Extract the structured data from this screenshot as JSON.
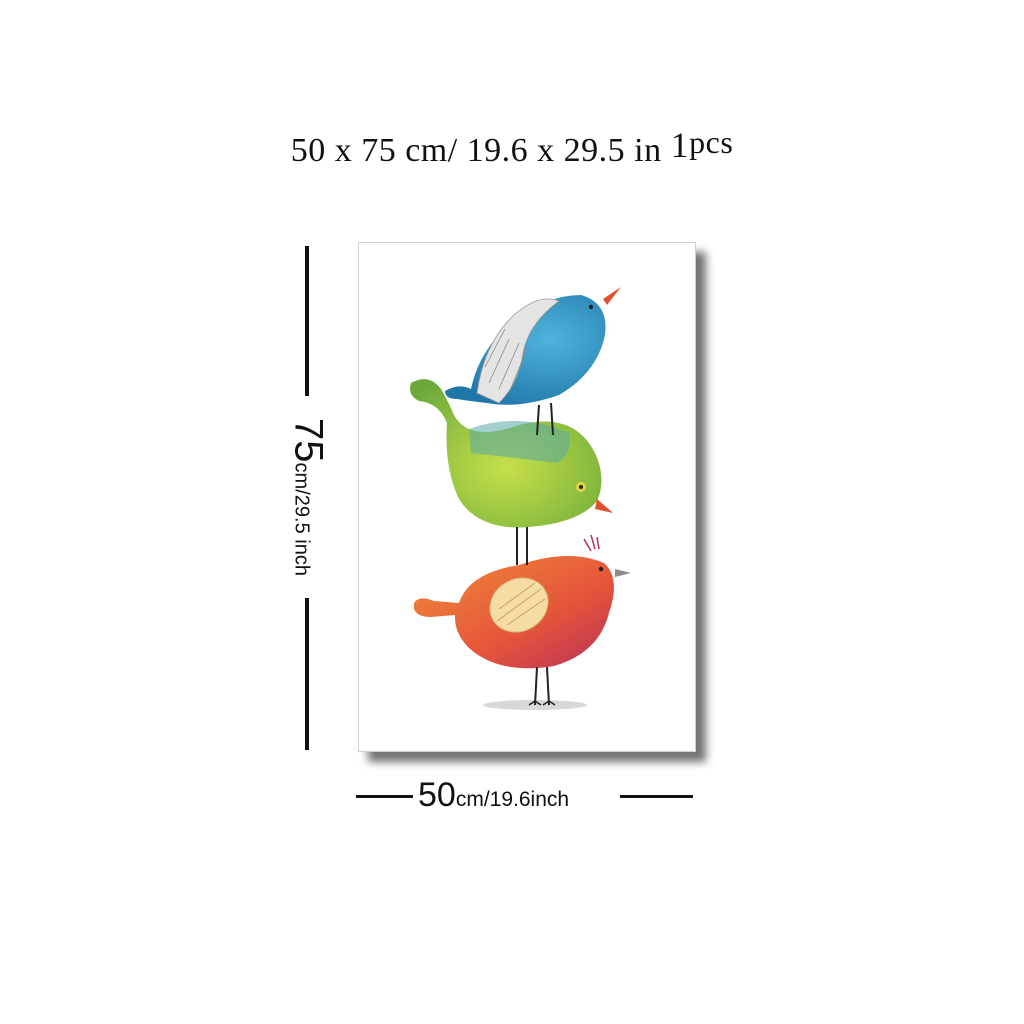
{
  "header": {
    "size_text": "50 x 75 cm/ 19.6 x 29.5 in",
    "quantity": "1",
    "quantity_unit": "pcs"
  },
  "height_dimension": {
    "value": "75",
    "unit_text": "cm/29.5 inch"
  },
  "width_dimension": {
    "value": "50",
    "unit_text": "cm/19.6inch"
  },
  "artwork": {
    "subject": "three stacked watercolor birds",
    "colors": {
      "top_bird": "#2f93c4",
      "middle_bird": "#8cc63f",
      "bottom_bird": "#e8643a",
      "beak": "#e0522e"
    }
  }
}
